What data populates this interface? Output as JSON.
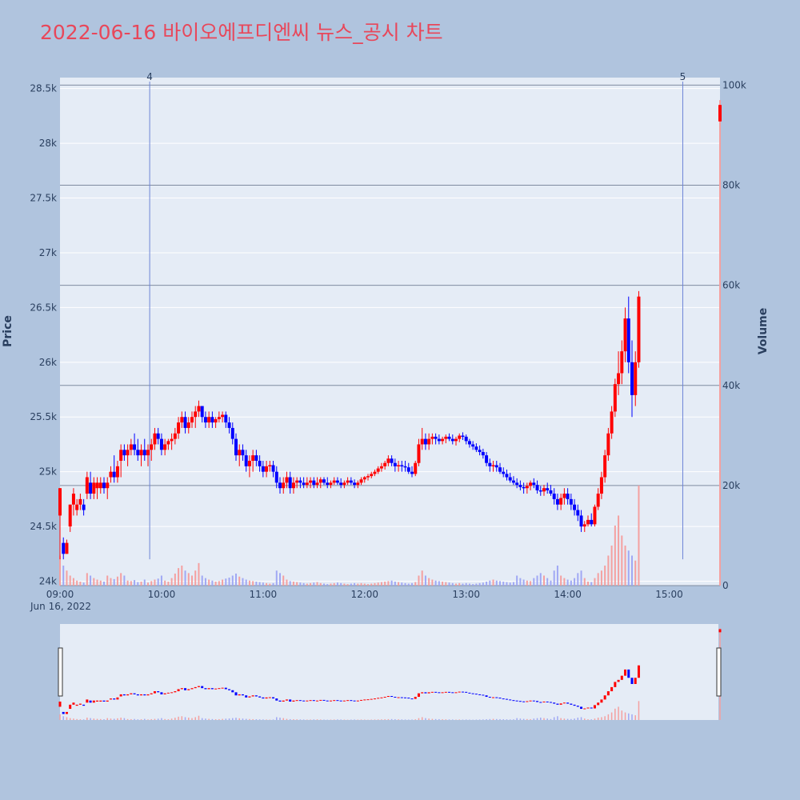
{
  "chart_data": {
    "type": "candlestick",
    "title": "2022-06-16 바이오에프디엔씨 뉴스_공시 차트",
    "ylabel": "Price",
    "y2label": "Volume",
    "date_label": "Jun 16, 2022",
    "ylim": [
      23960,
      28600
    ],
    "y2lim": [
      0,
      101500
    ],
    "xlim": [
      "09:00",
      "15:30"
    ],
    "price_ticks": [
      "24k",
      "24.5k",
      "25k",
      "25.5k",
      "26k",
      "26.5k",
      "27k",
      "27.5k",
      "28k",
      "28.5k"
    ],
    "price_tick_values": [
      24000,
      24500,
      25000,
      25500,
      26000,
      26500,
      27000,
      27500,
      28000,
      28500
    ],
    "volume_ticks": [
      "0",
      "20k",
      "40k",
      "60k",
      "80k",
      "100k"
    ],
    "volume_tick_values": [
      0,
      20000,
      40000,
      60000,
      80000,
      100000
    ],
    "time_ticks": [
      "09:00",
      "10:00",
      "11:00",
      "12:00",
      "13:00",
      "14:00",
      "15:00"
    ],
    "grid": true,
    "up_color": "#ff0000",
    "down_color": "#0000ff",
    "news_markers": [
      {
        "label": "4",
        "time": "09:53"
      },
      {
        "label": "5",
        "time": "15:08"
      }
    ],
    "candles": [
      [
        "09:00",
        24600,
        24850,
        24200,
        24850,
        6000
      ],
      [
        "09:02",
        24350,
        24400,
        24200,
        24250,
        4000
      ],
      [
        "09:04",
        24250,
        24380,
        24250,
        24350,
        3000
      ],
      [
        "09:06",
        24500,
        24700,
        24450,
        24700,
        2000
      ],
      [
        "09:08",
        24700,
        24850,
        24600,
        24800,
        1500
      ],
      [
        "09:10",
        24650,
        24750,
        24600,
        24700,
        1000
      ],
      [
        "09:12",
        24700,
        24800,
        24650,
        24750,
        800
      ],
      [
        "09:14",
        24700,
        24750,
        24600,
        24650,
        600
      ],
      [
        "09:16",
        24800,
        25000,
        24750,
        24950,
        2500
      ],
      [
        "09:18",
        24900,
        25000,
        24750,
        24800,
        2000
      ],
      [
        "09:20",
        24800,
        24950,
        24750,
        24900,
        1500
      ],
      [
        "09:22",
        24850,
        24950,
        24750,
        24900,
        1200
      ],
      [
        "09:24",
        24850,
        24950,
        24800,
        24900,
        1000
      ],
      [
        "09:26",
        24900,
        24950,
        24800,
        24850,
        800
      ],
      [
        "09:28",
        24850,
        24950,
        24750,
        24900,
        2000
      ],
      [
        "09:30",
        24950,
        25050,
        24900,
        25000,
        1500
      ],
      [
        "09:32",
        25000,
        25150,
        24900,
        24950,
        1300
      ],
      [
        "09:34",
        24950,
        25100,
        24900,
        25050,
        1800
      ],
      [
        "09:36",
        25100,
        25250,
        24950,
        25200,
        2500
      ],
      [
        "09:38",
        25200,
        25250,
        25100,
        25150,
        2000
      ],
      [
        "09:40",
        25150,
        25250,
        25050,
        25200,
        1000
      ],
      [
        "09:42",
        25200,
        25300,
        25150,
        25250,
        900
      ],
      [
        "09:44",
        25250,
        25350,
        25150,
        25200,
        1100
      ],
      [
        "09:46",
        25200,
        25300,
        25100,
        25150,
        700
      ],
      [
        "09:48",
        25150,
        25250,
        25050,
        25200,
        800
      ],
      [
        "09:50",
        25200,
        25300,
        25100,
        25150,
        1200
      ],
      [
        "09:52",
        25150,
        25250,
        25050,
        25200,
        600
      ],
      [
        "09:54",
        25200,
        25300,
        25100,
        25250,
        900
      ],
      [
        "09:56",
        25250,
        25400,
        25200,
        25350,
        1200
      ],
      [
        "09:58",
        25350,
        25400,
        25250,
        25300,
        1400
      ],
      [
        "10:00",
        25300,
        25350,
        25150,
        25200,
        2000
      ],
      [
        "10:02",
        25200,
        25300,
        25150,
        25250,
        1000
      ],
      [
        "10:04",
        25250,
        25300,
        25200,
        25280,
        800
      ],
      [
        "10:06",
        25280,
        25350,
        25200,
        25300,
        1500
      ],
      [
        "10:08",
        25300,
        25400,
        25250,
        25350,
        2400
      ],
      [
        "10:10",
        25350,
        25500,
        25300,
        25450,
        3500
      ],
      [
        "10:12",
        25450,
        25550,
        25400,
        25500,
        4000
      ],
      [
        "10:14",
        25500,
        25550,
        25350,
        25400,
        3000
      ],
      [
        "10:16",
        25400,
        25500,
        25350,
        25450,
        2500
      ],
      [
        "10:18",
        25450,
        25550,
        25400,
        25500,
        2000
      ],
      [
        "10:20",
        25500,
        25600,
        25400,
        25550,
        3000
      ],
      [
        "10:22",
        25550,
        25650,
        25500,
        25600,
        4500
      ],
      [
        "10:24",
        25600,
        25600,
        25450,
        25500,
        2000
      ],
      [
        "10:26",
        25500,
        25550,
        25400,
        25450,
        1500
      ],
      [
        "10:28",
        25450,
        25550,
        25400,
        25500,
        1200
      ],
      [
        "10:30",
        25500,
        25550,
        25400,
        25450,
        1000
      ],
      [
        "10:32",
        25450,
        25500,
        25400,
        25480,
        800
      ],
      [
        "10:34",
        25480,
        25550,
        25450,
        25500,
        900
      ],
      [
        "10:36",
        25500,
        25550,
        25450,
        25520,
        1200
      ],
      [
        "10:38",
        25520,
        25550,
        25400,
        25450,
        1400
      ],
      [
        "10:40",
        25450,
        25500,
        25350,
        25400,
        1600
      ],
      [
        "10:42",
        25400,
        25450,
        25250,
        25300,
        2000
      ],
      [
        "10:44",
        25300,
        25350,
        25100,
        25150,
        2400
      ],
      [
        "10:46",
        25150,
        25250,
        25050,
        25200,
        1800
      ],
      [
        "10:48",
        25200,
        25250,
        25100,
        25150,
        1500
      ],
      [
        "10:50",
        25150,
        25200,
        25000,
        25050,
        1200
      ],
      [
        "10:52",
        25050,
        25150,
        24950,
        25100,
        1000
      ],
      [
        "10:54",
        25100,
        25200,
        25000,
        25150,
        900
      ],
      [
        "10:56",
        25150,
        25200,
        25050,
        25100,
        800
      ],
      [
        "10:58",
        25100,
        25150,
        25000,
        25050,
        700
      ],
      [
        "11:00",
        25050,
        25100,
        24950,
        25000,
        600
      ],
      [
        "11:02",
        25000,
        25100,
        24950,
        25050,
        500
      ],
      [
        "11:04",
        25050,
        25100,
        25000,
        25060,
        400
      ],
      [
        "11:06",
        25060,
        25100,
        24950,
        25000,
        500
      ],
      [
        "11:08",
        25000,
        25050,
        24850,
        24900,
        3000
      ],
      [
        "11:10",
        24900,
        24950,
        24800,
        24850,
        2500
      ],
      [
        "11:12",
        24850,
        24950,
        24800,
        24900,
        2000
      ],
      [
        "11:14",
        24900,
        25000,
        24850,
        24950,
        1200
      ],
      [
        "11:16",
        24950,
        25000,
        24800,
        24850,
        900
      ],
      [
        "11:18",
        24850,
        24950,
        24800,
        24900,
        800
      ],
      [
        "11:20",
        24900,
        24950,
        24850,
        24920,
        700
      ],
      [
        "11:22",
        24920,
        24950,
        24850,
        24900,
        600
      ],
      [
        "11:24",
        24900,
        24950,
        24850,
        24880,
        500
      ],
      [
        "11:26",
        24880,
        24950,
        24850,
        24900,
        400
      ],
      [
        "11:28",
        24900,
        24950,
        24850,
        24920,
        500
      ],
      [
        "11:30",
        24920,
        24950,
        24850,
        24880,
        600
      ],
      [
        "11:32",
        24880,
        24950,
        24850,
        24900,
        700
      ],
      [
        "11:34",
        24900,
        24950,
        24850,
        24930,
        500
      ],
      [
        "11:36",
        24930,
        24950,
        24880,
        24900,
        400
      ],
      [
        "11:38",
        24900,
        24950,
        24850,
        24880,
        300
      ],
      [
        "11:40",
        24880,
        24920,
        24850,
        24900,
        400
      ],
      [
        "11:42",
        24900,
        24950,
        24880,
        24920,
        500
      ],
      [
        "11:44",
        24920,
        24950,
        24880,
        24900,
        600
      ],
      [
        "11:46",
        24900,
        24940,
        24850,
        24880,
        500
      ],
      [
        "11:48",
        24880,
        24920,
        24850,
        24900,
        400
      ],
      [
        "11:50",
        24900,
        24950,
        24880,
        24920,
        300
      ],
      [
        "11:52",
        24920,
        24950,
        24880,
        24900,
        400
      ],
      [
        "11:54",
        24900,
        24930,
        24850,
        24880,
        500
      ],
      [
        "11:56",
        24880,
        24920,
        24850,
        24900,
        400
      ],
      [
        "11:58",
        24900,
        24950,
        24880,
        24930,
        500
      ],
      [
        "12:00",
        24930,
        24960,
        24900,
        24950,
        400
      ],
      [
        "12:02",
        24950,
        24980,
        24920,
        24960,
        300
      ],
      [
        "12:04",
        24960,
        25000,
        24940,
        24980,
        400
      ],
      [
        "12:06",
        24980,
        25020,
        24960,
        25000,
        500
      ],
      [
        "12:08",
        25000,
        25050,
        24980,
        25030,
        600
      ],
      [
        "12:10",
        25030,
        25080,
        25000,
        25050,
        700
      ],
      [
        "12:12",
        25050,
        25100,
        25020,
        25080,
        800
      ],
      [
        "12:14",
        25080,
        25150,
        25050,
        25120,
        900
      ],
      [
        "12:16",
        25120,
        25150,
        25050,
        25080,
        1000
      ],
      [
        "12:18",
        25080,
        25120,
        25000,
        25050,
        800
      ],
      [
        "12:20",
        25050,
        25100,
        25000,
        25060,
        700
      ],
      [
        "12:22",
        25060,
        25100,
        25000,
        25050,
        600
      ],
      [
        "12:24",
        25050,
        25100,
        25000,
        25040,
        500
      ],
      [
        "12:26",
        25040,
        25080,
        24980,
        25000,
        400
      ],
      [
        "12:28",
        25000,
        25050,
        24950,
        24980,
        500
      ],
      [
        "12:30",
        24980,
        25100,
        24960,
        25080,
        700
      ],
      [
        "12:32",
        25080,
        25300,
        25050,
        25250,
        2000
      ],
      [
        "12:34",
        25250,
        25400,
        25200,
        25300,
        3000
      ],
      [
        "12:36",
        25300,
        25350,
        25200,
        25250,
        2000
      ],
      [
        "12:38",
        25250,
        25350,
        25200,
        25300,
        1500
      ],
      [
        "12:40",
        25300,
        25350,
        25250,
        25320,
        1200
      ],
      [
        "12:42",
        25320,
        25350,
        25250,
        25300,
        1000
      ],
      [
        "12:44",
        25300,
        25340,
        25250,
        25280,
        900
      ],
      [
        "12:46",
        25280,
        25320,
        25250,
        25300,
        800
      ],
      [
        "12:48",
        25300,
        25340,
        25260,
        25320,
        700
      ],
      [
        "12:50",
        25320,
        25350,
        25280,
        25300,
        600
      ],
      [
        "12:52",
        25300,
        25340,
        25250,
        25280,
        500
      ],
      [
        "12:54",
        25280,
        25320,
        25240,
        25300,
        400
      ],
      [
        "12:56",
        25300,
        25350,
        25270,
        25330,
        500
      ],
      [
        "12:58",
        25330,
        25360,
        25290,
        25320,
        400
      ],
      [
        "13:00",
        25320,
        25340,
        25250,
        25280,
        500
      ],
      [
        "13:02",
        25280,
        25300,
        25220,
        25250,
        400
      ],
      [
        "13:04",
        25250,
        25280,
        25200,
        25230,
        300
      ],
      [
        "13:06",
        25230,
        25260,
        25180,
        25200,
        400
      ],
      [
        "13:08",
        25200,
        25240,
        25150,
        25180,
        500
      ],
      [
        "13:10",
        25180,
        25210,
        25120,
        25150,
        600
      ],
      [
        "13:12",
        25150,
        25180,
        25050,
        25080,
        800
      ],
      [
        "13:14",
        25080,
        25120,
        25000,
        25050,
        1000
      ],
      [
        "13:16",
        25050,
        25100,
        25000,
        25060,
        1200
      ],
      [
        "13:18",
        25060,
        25100,
        25000,
        25040,
        1000
      ],
      [
        "13:20",
        25040,
        25080,
        24980,
        25000,
        900
      ],
      [
        "13:22",
        25000,
        25040,
        24950,
        24980,
        800
      ],
      [
        "13:24",
        24980,
        25020,
        24920,
        24950,
        700
      ],
      [
        "13:26",
        24950,
        24990,
        24900,
        24920,
        600
      ],
      [
        "13:28",
        24920,
        24960,
        24880,
        24900,
        700
      ],
      [
        "13:30",
        24900,
        24940,
        24850,
        24880,
        2000
      ],
      [
        "13:32",
        24880,
        24920,
        24830,
        24860,
        1500
      ],
      [
        "13:34",
        24860,
        24900,
        24800,
        24850,
        1200
      ],
      [
        "13:36",
        24850,
        24900,
        24800,
        24870,
        1000
      ],
      [
        "13:38",
        24870,
        24920,
        24830,
        24900,
        900
      ],
      [
        "13:40",
        24900,
        24940,
        24850,
        24880,
        1500
      ],
      [
        "13:42",
        24880,
        24920,
        24800,
        24830,
        2000
      ],
      [
        "13:44",
        24830,
        24870,
        24780,
        24820,
        2500
      ],
      [
        "13:46",
        24820,
        24880,
        24780,
        24850,
        2000
      ],
      [
        "13:48",
        24850,
        24900,
        24800,
        24830,
        1500
      ],
      [
        "13:50",
        24830,
        24880,
        24780,
        24800,
        1000
      ],
      [
        "13:52",
        24800,
        24850,
        24700,
        24750,
        3000
      ],
      [
        "13:54",
        24750,
        24800,
        24650,
        24700,
        4000
      ],
      [
        "13:56",
        24700,
        24800,
        24650,
        24760,
        2000
      ],
      [
        "13:58",
        24760,
        24850,
        24700,
        24800,
        1500
      ],
      [
        "14:00",
        24800,
        24850,
        24700,
        24750,
        1200
      ],
      [
        "14:02",
        24750,
        24800,
        24650,
        24700,
        1000
      ],
      [
        "14:04",
        24700,
        24750,
        24600,
        24650,
        1500
      ],
      [
        "14:06",
        24650,
        24700,
        24550,
        24600,
        2500
      ],
      [
        "14:08",
        24600,
        24650,
        24450,
        24500,
        3000
      ],
      [
        "14:10",
        24500,
        24550,
        24450,
        24520,
        1500
      ],
      [
        "14:12",
        24520,
        24600,
        24500,
        24560,
        800
      ],
      [
        "14:14",
        24560,
        24620,
        24500,
        24520,
        700
      ],
      [
        "14:16",
        24520,
        24700,
        24500,
        24680,
        1500
      ],
      [
        "14:18",
        24680,
        24850,
        24650,
        24800,
        2500
      ],
      [
        "14:20",
        24800,
        25000,
        24750,
        24950,
        3000
      ],
      [
        "14:22",
        24950,
        25200,
        24900,
        25150,
        4000
      ],
      [
        "14:24",
        25150,
        25400,
        25100,
        25350,
        6000
      ],
      [
        "14:26",
        25350,
        25600,
        25300,
        25550,
        8000
      ],
      [
        "14:28",
        25550,
        25850,
        25500,
        25800,
        12000
      ],
      [
        "14:30",
        25800,
        26100,
        25700,
        25900,
        14000
      ],
      [
        "14:32",
        25900,
        26200,
        25800,
        26100,
        10000
      ],
      [
        "14:34",
        26100,
        26500,
        26000,
        26400,
        8000
      ],
      [
        "14:36",
        26400,
        26600,
        25900,
        26000,
        7000
      ],
      [
        "14:38",
        26000,
        26200,
        25500,
        25700,
        6000
      ],
      [
        "14:40",
        25700,
        26100,
        25600,
        26000,
        5000
      ],
      [
        "14:42",
        26000,
        26650,
        25950,
        26600,
        20000
      ],
      [
        "15:30",
        28200,
        28350,
        28200,
        28350,
        97000
      ]
    ]
  }
}
